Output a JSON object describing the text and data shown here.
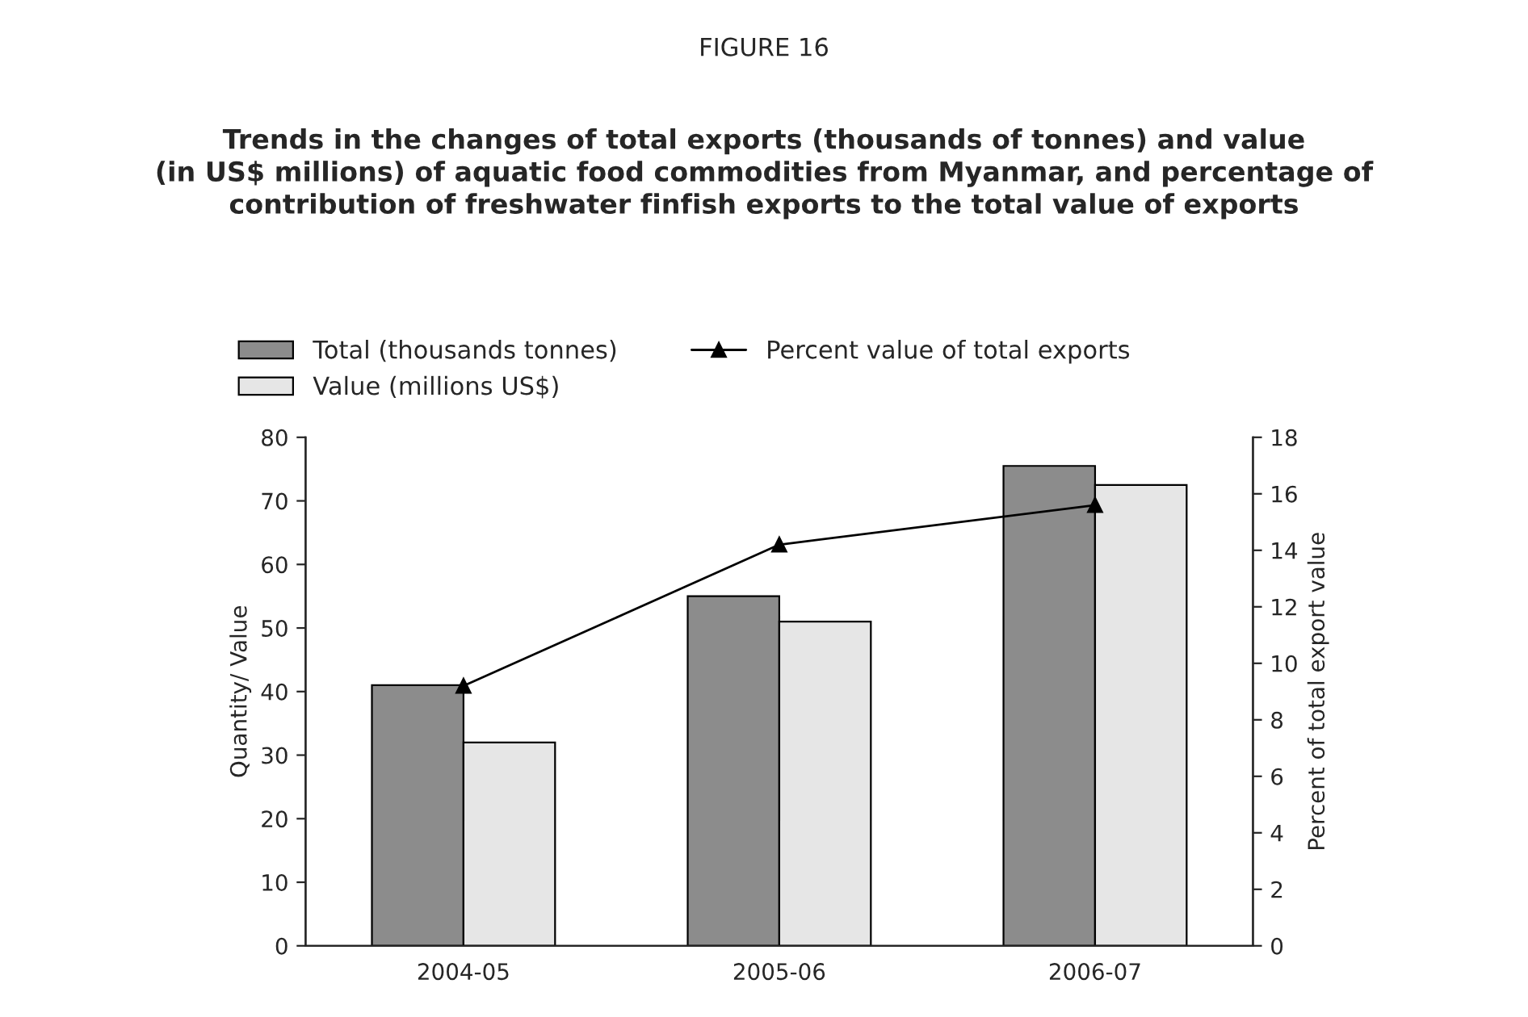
{
  "chart_data": {
    "type": "bar",
    "title": "FIGURE 16",
    "subtitle": "Trends in the changes of total exports (thousands of tonnes) and value\n(in US$ millions) of aquatic food commodities from Myanmar, and percentage of\ncontribution of freshwater finfish exports to the total value of exports",
    "ylabel": "Quantity/ Value",
    "y2label": "Percent of total export value",
    "categories": [
      "2004-05",
      "2005-06",
      "2006-07"
    ],
    "series": [
      {
        "name": "Total (thousands tonnes)",
        "color": "#8c8c8c",
        "values": [
          41,
          55,
          75.5
        ]
      },
      {
        "name": "Value (millions US$)",
        "color": "#e6e6e6",
        "values": [
          32,
          51,
          72.5
        ]
      },
      {
        "name": "Percent value of total exports",
        "type": "line",
        "axis": "y2",
        "color": "#000000",
        "marker": "triangle",
        "values": [
          9.2,
          14.2,
          15.6
        ]
      }
    ],
    "ylim": [
      0,
      80
    ],
    "yticks": [
      0,
      10,
      20,
      30,
      40,
      50,
      60,
      70,
      80
    ],
    "y2lim": [
      0,
      18
    ],
    "y2ticks": [
      0,
      2,
      4,
      6,
      8,
      10,
      12,
      14,
      16,
      18
    ],
    "grid": false,
    "legend": "top"
  }
}
